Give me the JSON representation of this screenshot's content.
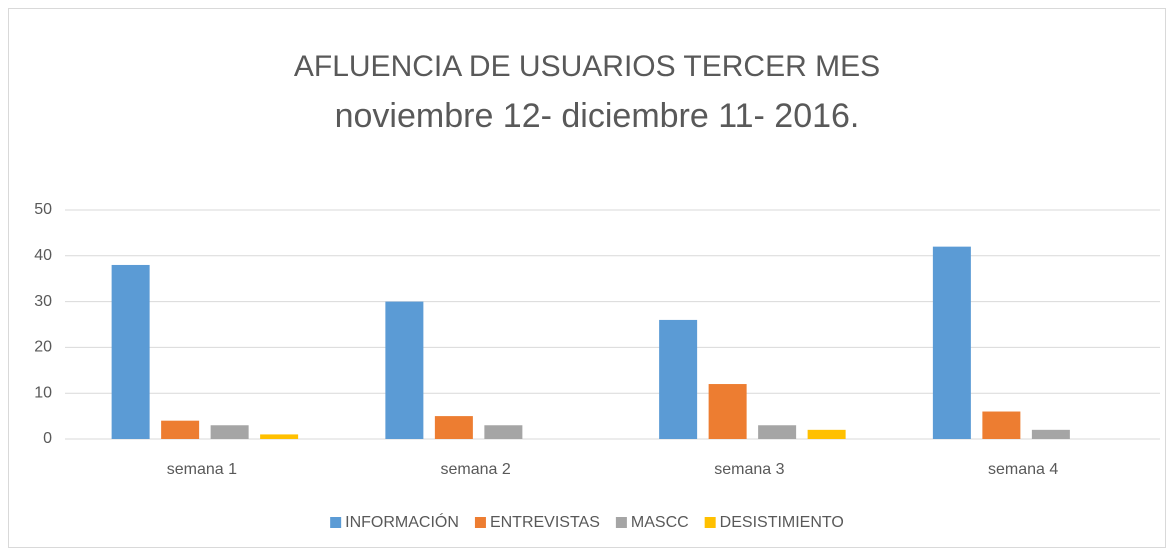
{
  "chart_data": {
    "type": "bar",
    "title": "AFLUENCIA DE USUARIOS TERCER MES",
    "subtitle": "noviembre 12- diciembre 11-  2016.",
    "categories": [
      "semana 1",
      "semana 2",
      "semana 3",
      "semana 4"
    ],
    "series": [
      {
        "name": "INFORMACIÓN",
        "color": "#5b9bd5",
        "values": [
          38,
          30,
          26,
          42
        ]
      },
      {
        "name": "ENTREVISTAS",
        "color": "#ed7d31",
        "values": [
          4,
          5,
          12,
          6
        ]
      },
      {
        "name": "MASCC",
        "color": "#a5a5a5",
        "values": [
          3,
          3,
          3,
          2
        ]
      },
      {
        "name": "DESISTIMIENTO",
        "color": "#ffc000",
        "values": [
          1,
          0,
          2,
          0
        ]
      }
    ],
    "ylim": [
      0,
      50
    ],
    "yticks": [
      0,
      10,
      20,
      30,
      40,
      50
    ],
    "grid": true,
    "legend": "bottom"
  }
}
